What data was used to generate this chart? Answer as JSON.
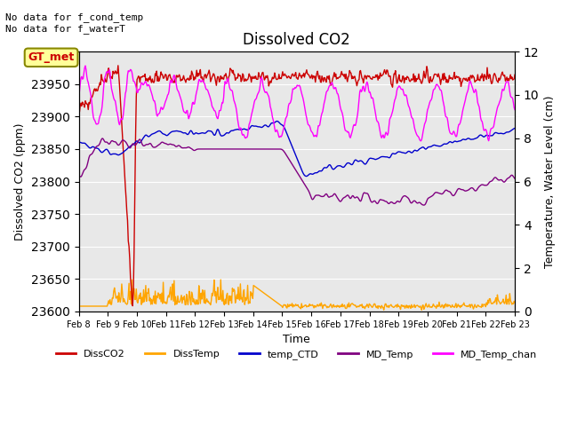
{
  "title": "Dissolved CO2",
  "xlabel": "Time",
  "ylabel_left": "Dissolved CO2 (ppm)",
  "ylabel_right": "Temperature, Water Level (cm)",
  "annotation_top": "No data for f_cond_temp\nNo data for f_waterT",
  "legend_label": "GT_met",
  "legend_entries": [
    "DissCO2",
    "DissTemp",
    "temp_CTD",
    "MD_Temp",
    "MD_Temp_chan"
  ],
  "legend_colors": [
    "#cc0000",
    "#ffa500",
    "#0000cc",
    "#800080",
    "#ff00ff"
  ],
  "ylim_left": [
    23600,
    24000
  ],
  "ylim_right": [
    0,
    12
  ],
  "background_color": "#e8e8e8",
  "n_points": 600,
  "date_start": 8,
  "date_end": 23,
  "x_tick_labels": [
    "Feb 8",
    "Feb 9",
    "Feb 10",
    "Feb 11",
    "Feb 12",
    "Feb 13",
    "Feb 14",
    "Feb 15",
    "Feb 16",
    "Feb 17",
    "Feb 18",
    "Feb 19",
    "Feb 20",
    "Feb 21",
    "Feb 22",
    "Feb 23"
  ]
}
